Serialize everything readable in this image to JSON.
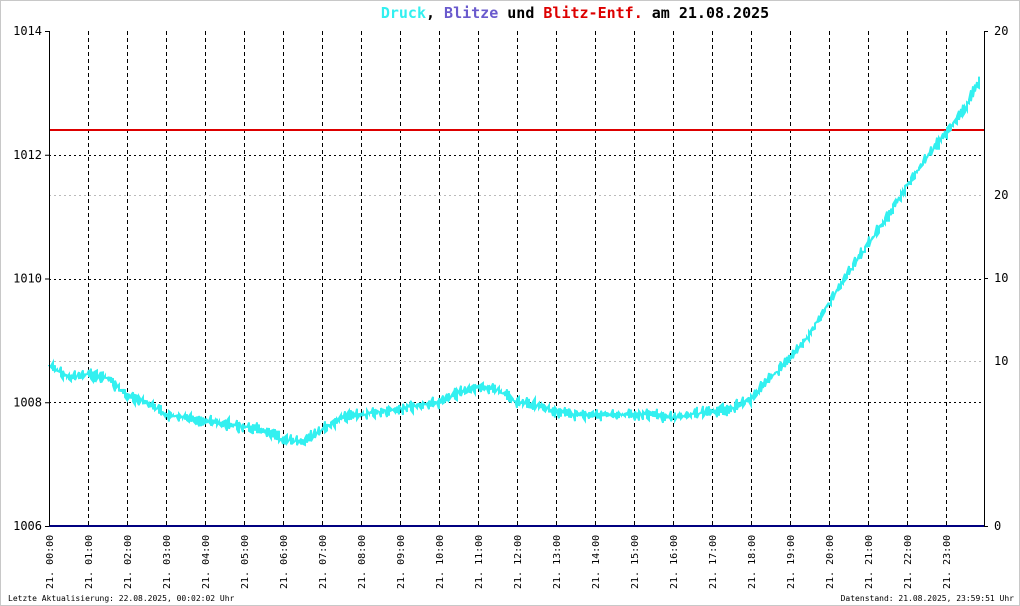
{
  "title": {
    "parts": [
      {
        "text": "Druck",
        "color": "#33f0f0"
      },
      {
        "text": ",",
        "color": "#000000"
      },
      {
        "text": " Blitze",
        "color": "#6a5acd"
      },
      {
        "text": " und ",
        "color": "#000000"
      },
      {
        "text": "Blitz-Entf.",
        "color": "#dd0000"
      },
      {
        "text": " am 21.08.2025",
        "color": "#000000"
      }
    ]
  },
  "footer": {
    "left": "Letzte Aktualisierung: 22.08.2025, 00:02:02 Uhr",
    "right": "Datenstand: 21.08.2025, 23:59:51 Uhr"
  },
  "chart_data": {
    "type": "line",
    "y_left": {
      "ticks": [
        "1014",
        "1012",
        "1010",
        "1008",
        "1006"
      ],
      "range": [
        1006,
        1014
      ]
    },
    "y_right_black": {
      "ticks": [
        "20",
        "10",
        "0"
      ]
    },
    "y_right_red": {
      "ticks": [
        "20",
        "10"
      ],
      "color": "#dd0000"
    },
    "x_ticks": [
      "21. 00:00",
      "21. 01:00",
      "21. 02:00",
      "21. 03:00",
      "21. 04:00",
      "21. 05:00",
      "21. 06:00",
      "21. 07:00",
      "21. 08:00",
      "21. 09:00",
      "21. 10:00",
      "21. 11:00",
      "21. 12:00",
      "21. 13:00",
      "21. 14:00",
      "21. 15:00",
      "21. 16:00",
      "21. 17:00",
      "21. 18:00",
      "21. 19:00",
      "21. 20:00",
      "21. 21:00",
      "21. 22:00",
      "21. 23:00"
    ],
    "series": [
      {
        "name": "Druck",
        "color": "#33f0f0",
        "hours": [
          0,
          0.5,
          1,
          1.5,
          2,
          2.5,
          3,
          3.5,
          4,
          4.5,
          5,
          5.5,
          6,
          6.5,
          7,
          7.5,
          8,
          8.5,
          9,
          9.5,
          10,
          10.5,
          11,
          11.5,
          12,
          12.5,
          13,
          13.5,
          14,
          14.5,
          15,
          15.5,
          16,
          16.5,
          17,
          17.5,
          18,
          18.5,
          19,
          19.5,
          20,
          20.5,
          21,
          21.5,
          22,
          22.5,
          23,
          23.5,
          23.85
        ],
        "values": [
          1008.6,
          1008.4,
          1008.45,
          1008.4,
          1008.1,
          1008.0,
          1007.8,
          1007.75,
          1007.7,
          1007.65,
          1007.6,
          1007.55,
          1007.4,
          1007.35,
          1007.55,
          1007.75,
          1007.8,
          1007.85,
          1007.9,
          1007.95,
          1008.0,
          1008.15,
          1008.25,
          1008.2,
          1008.0,
          1007.95,
          1007.85,
          1007.8,
          1007.8,
          1007.8,
          1007.8,
          1007.8,
          1007.75,
          1007.8,
          1007.85,
          1007.9,
          1008.05,
          1008.4,
          1008.7,
          1009.1,
          1009.6,
          1010.1,
          1010.55,
          1011.0,
          1011.5,
          1011.95,
          1012.35,
          1012.75,
          1013.2
        ]
      },
      {
        "name": "Blitz-Entf.",
        "color": "#dd0000",
        "constant": 1012.4
      },
      {
        "name": "Blitze",
        "color": "#000080",
        "constant": 1006.0
      }
    ]
  }
}
